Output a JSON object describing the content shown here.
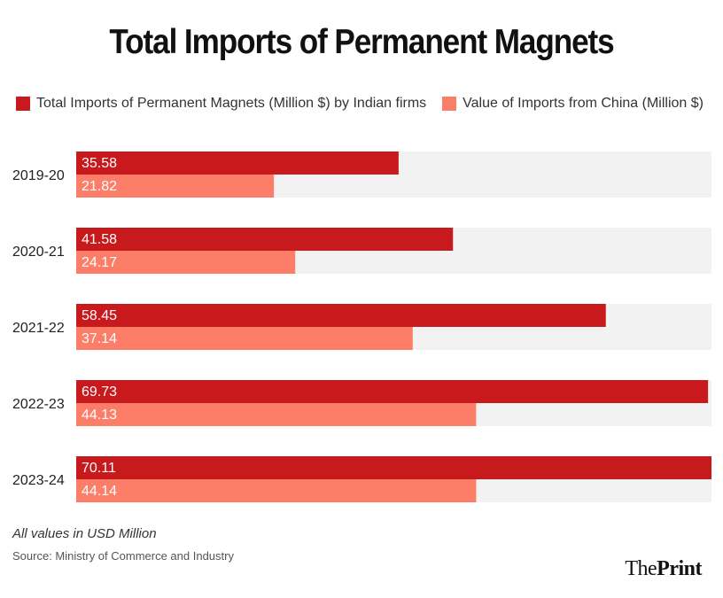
{
  "title": "Total Imports of Permanent Magnets",
  "legend": [
    {
      "label": "Total Imports of Permanent Magnets (Million $) by Indian firms",
      "color": "#c8191c"
    },
    {
      "label": "Value of Imports from China (Million $)",
      "color": "#fd7e68"
    }
  ],
  "chart_data": {
    "type": "bar",
    "orientation": "horizontal",
    "title": "Total Imports of Permanent Magnets",
    "categories": [
      "2019-20",
      "2020-21",
      "2021-22",
      "2022-23",
      "2023-24"
    ],
    "series": [
      {
        "name": "Total Imports of Permanent Magnets (Million $) by Indian firms",
        "color": "#c8191c",
        "values": [
          35.58,
          41.58,
          58.45,
          69.73,
          70.11
        ],
        "labels": [
          "35.58",
          "41.58",
          "58.45",
          "69.73",
          "70.11"
        ]
      },
      {
        "name": "Value of Imports from China (Million $)",
        "color": "#fd7e68",
        "values": [
          21.82,
          24.17,
          37.14,
          44.13,
          44.14
        ],
        "labels": [
          "21.82",
          "24.17",
          "37.14",
          "44.13",
          "44.14"
        ]
      }
    ],
    "xlim": [
      0,
      70.11
    ],
    "background_track_color": "#f2f2f2",
    "grid": false,
    "xlabel": "",
    "ylabel": ""
  },
  "note": "All values in USD Million",
  "source": "Source: Ministry of Commerce and Industry",
  "logo": {
    "the": "The",
    "print": "Print"
  }
}
